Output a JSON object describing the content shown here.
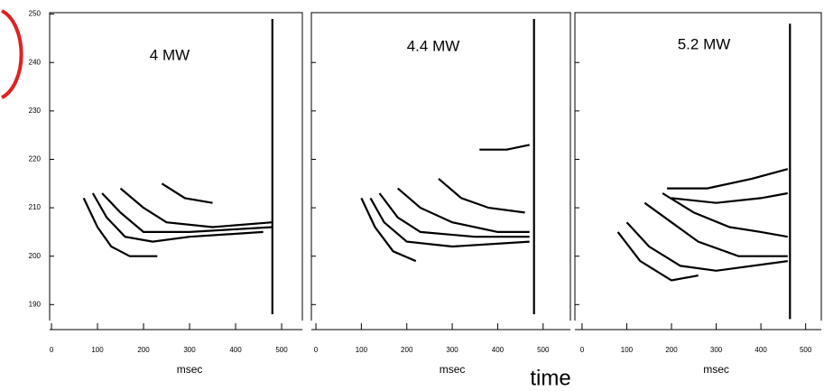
{
  "caption": "time",
  "chart_data": [
    {
      "type": "line",
      "annotation": "4 MW",
      "x_label": "msec",
      "xlim": [
        -4,
        545
      ],
      "ylim": [
        186.7,
        250.3
      ],
      "xticks": [
        0,
        100,
        200,
        300,
        400,
        500
      ],
      "yticks": [
        190,
        200,
        210,
        220,
        230,
        240,
        250
      ],
      "ytick_labels": true,
      "series": [
        {
          "color": "#000000",
          "x": [
            70,
            100,
            130,
            170,
            230
          ],
          "values": [
            212,
            206,
            202,
            200,
            200
          ]
        },
        {
          "color": "#000000",
          "x": [
            90,
            120,
            160,
            220,
            300,
            460
          ],
          "values": [
            213,
            208,
            204,
            203,
            204,
            205
          ]
        },
        {
          "color": "#000000",
          "x": [
            110,
            150,
            200,
            300,
            480
          ],
          "values": [
            213,
            209,
            205,
            205,
            206
          ]
        },
        {
          "color": "#000000",
          "x": [
            150,
            200,
            250,
            350,
            480
          ],
          "values": [
            214,
            210,
            207,
            206,
            207
          ]
        },
        {
          "color": "#000000",
          "x": [
            240,
            290,
            350
          ],
          "values": [
            215,
            212,
            211
          ]
        },
        {
          "color": "#000000",
          "x": [
            480,
            480
          ],
          "values": [
            188,
            249
          ]
        }
      ]
    },
    {
      "type": "line",
      "annotation": "4.4 MW",
      "x_label": "msec",
      "xlim": [
        -10,
        560
      ],
      "ylim": [
        186.7,
        250.3
      ],
      "xticks": [
        0,
        100,
        200,
        300,
        400,
        500
      ],
      "yticks": [
        190,
        200,
        210,
        220,
        230,
        240
      ],
      "ytick_labels": false,
      "series": [
        {
          "color": "#000000",
          "x": [
            100,
            130,
            170,
            220
          ],
          "values": [
            212,
            206,
            201,
            199
          ]
        },
        {
          "color": "#000000",
          "x": [
            120,
            150,
            200,
            300,
            470
          ],
          "values": [
            212,
            207,
            203,
            202,
            203
          ]
        },
        {
          "color": "#000000",
          "x": [
            140,
            180,
            230,
            350,
            470
          ],
          "values": [
            213,
            208,
            205,
            204,
            204
          ]
        },
        {
          "color": "#000000",
          "x": [
            180,
            230,
            300,
            400,
            470
          ],
          "values": [
            214,
            210,
            207,
            205,
            205
          ]
        },
        {
          "color": "#000000",
          "x": [
            270,
            320,
            380,
            460
          ],
          "values": [
            216,
            212,
            210,
            209
          ]
        },
        {
          "color": "#000000",
          "x": [
            360,
            420,
            470
          ],
          "values": [
            222,
            222,
            223
          ]
        },
        {
          "color": "#000000",
          "x": [
            480,
            480
          ],
          "values": [
            188,
            249
          ]
        }
      ]
    },
    {
      "type": "line",
      "annotation": "5.2 MW",
      "x_label": "msec",
      "xlim": [
        -16,
        535
      ],
      "ylim": [
        186.7,
        250.3
      ],
      "xticks": [
        0,
        100,
        200,
        300,
        400,
        500
      ],
      "yticks": [
        190,
        200,
        210,
        220,
        230,
        240
      ],
      "ytick_labels": false,
      "series": [
        {
          "color": "#000000",
          "x": [
            80,
            130,
            200,
            260
          ],
          "values": [
            205,
            199,
            195,
            196
          ]
        },
        {
          "color": "#000000",
          "x": [
            100,
            150,
            220,
            300,
            460
          ],
          "values": [
            207,
            202,
            198,
            197,
            199
          ]
        },
        {
          "color": "#000000",
          "x": [
            140,
            200,
            260,
            350,
            460
          ],
          "values": [
            211,
            207,
            203,
            200,
            200
          ]
        },
        {
          "color": "#000000",
          "x": [
            180,
            250,
            330,
            400,
            460
          ],
          "values": [
            213,
            209,
            206,
            205,
            204
          ]
        },
        {
          "color": "#000000",
          "x": [
            190,
            280,
            380,
            460
          ],
          "values": [
            214,
            214,
            216,
            218
          ]
        },
        {
          "color": "#000000",
          "x": [
            200,
            300,
            400,
            460
          ],
          "values": [
            212,
            211,
            212,
            213
          ]
        },
        {
          "color": "#000000",
          "x": [
            465,
            465
          ],
          "values": [
            187,
            248
          ]
        }
      ]
    }
  ]
}
